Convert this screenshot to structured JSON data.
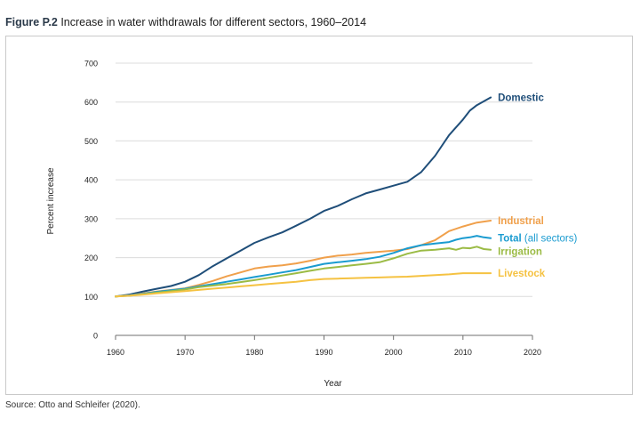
{
  "figure": {
    "label": "Figure P.2",
    "title": "Increase in water withdrawals for different sectors, 1960–2014",
    "source": "Source: Otto and Schleifer (2020)."
  },
  "chart_data": {
    "type": "line",
    "title": "Increase in water withdrawals for different sectors, 1960–2014",
    "xlabel": "Year",
    "ylabel": "Percent increase",
    "xlim": [
      1960,
      2020
    ],
    "ylim": [
      0,
      700
    ],
    "xticks": [
      1960,
      1970,
      1980,
      1990,
      2000,
      2010,
      2020
    ],
    "yticks": [
      0,
      100,
      200,
      300,
      400,
      500,
      600,
      700
    ],
    "grid": true,
    "legend": "end-of-line labels",
    "series": [
      {
        "name": "Domestic",
        "label_bold": "Domestic",
        "label_rest": "",
        "color": "#1f4e79",
        "x": [
          1960,
          1962,
          1964,
          1966,
          1968,
          1970,
          1972,
          1974,
          1976,
          1978,
          1980,
          1982,
          1984,
          1986,
          1988,
          1990,
          1992,
          1994,
          1996,
          1998,
          2000,
          2002,
          2004,
          2006,
          2008,
          2010,
          2011,
          2012,
          2014
        ],
        "y": [
          100,
          105,
          113,
          120,
          127,
          138,
          155,
          178,
          198,
          218,
          238,
          252,
          265,
          282,
          300,
          320,
          333,
          350,
          365,
          375,
          385,
          395,
          420,
          462,
          515,
          555,
          578,
          592,
          612
        ]
      },
      {
        "name": "Industrial",
        "label_bold": "Industrial",
        "label_rest": "",
        "color": "#f0a04b",
        "x": [
          1960,
          1962,
          1964,
          1966,
          1968,
          1970,
          1972,
          1974,
          1976,
          1978,
          1980,
          1982,
          1984,
          1986,
          1988,
          1990,
          1992,
          1994,
          1996,
          1998,
          2000,
          2002,
          2004,
          2006,
          2008,
          2010,
          2012,
          2014
        ],
        "y": [
          100,
          103,
          108,
          113,
          117,
          121,
          130,
          140,
          152,
          162,
          172,
          177,
          180,
          185,
          192,
          200,
          205,
          208,
          212,
          215,
          218,
          222,
          232,
          245,
          268,
          280,
          290,
          295
        ]
      },
      {
        "name": "Total (all sectors)",
        "label_bold": "Total",
        "label_rest": " (all sectors)",
        "color": "#1a9bd0",
        "x": [
          1960,
          1962,
          1964,
          1966,
          1968,
          1970,
          1972,
          1974,
          1976,
          1978,
          1980,
          1982,
          1984,
          1986,
          1988,
          1990,
          1992,
          1994,
          1996,
          1998,
          2000,
          2002,
          2004,
          2006,
          2008,
          2009,
          2010,
          2011,
          2012,
          2013,
          2014
        ],
        "y": [
          100,
          103,
          107,
          112,
          116,
          120,
          126,
          132,
          138,
          144,
          150,
          156,
          162,
          168,
          176,
          184,
          188,
          192,
          196,
          202,
          212,
          224,
          232,
          236,
          240,
          246,
          250,
          252,
          256,
          252,
          250
        ]
      },
      {
        "name": "Irrigation",
        "label_bold": "Irrigation",
        "label_rest": "",
        "color": "#9bbb45",
        "x": [
          1960,
          1962,
          1964,
          1966,
          1968,
          1970,
          1972,
          1974,
          1976,
          1978,
          1980,
          1982,
          1984,
          1986,
          1988,
          1990,
          1992,
          1994,
          1996,
          1998,
          2000,
          2002,
          2004,
          2006,
          2008,
          2009,
          2010,
          2011,
          2012,
          2013,
          2014
        ],
        "y": [
          100,
          102,
          106,
          110,
          114,
          118,
          124,
          128,
          132,
          137,
          142,
          148,
          154,
          160,
          166,
          172,
          176,
          180,
          184,
          188,
          198,
          210,
          218,
          220,
          224,
          220,
          225,
          224,
          228,
          222,
          220
        ]
      },
      {
        "name": "Livestock",
        "label_bold": "Livestock",
        "label_rest": "",
        "color": "#f5c242",
        "x": [
          1960,
          1962,
          1964,
          1966,
          1968,
          1970,
          1972,
          1974,
          1976,
          1978,
          1980,
          1982,
          1984,
          1986,
          1988,
          1990,
          1992,
          1994,
          1996,
          1998,
          2000,
          2002,
          2004,
          2006,
          2008,
          2010,
          2012,
          2014
        ],
        "y": [
          100,
          102,
          105,
          108,
          111,
          114,
          117,
          120,
          123,
          126,
          129,
          132,
          135,
          138,
          142,
          145,
          146,
          147,
          148,
          149,
          150,
          151,
          153,
          155,
          157,
          160,
          160,
          160
        ]
      }
    ]
  }
}
